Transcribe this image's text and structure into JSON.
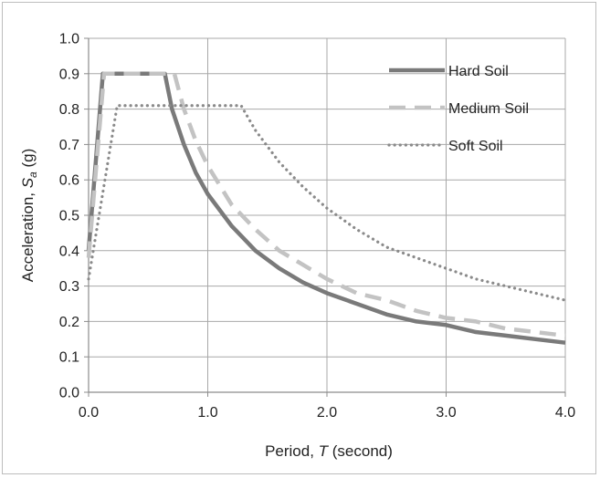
{
  "chart_data": {
    "type": "line",
    "xlabel": {
      "prefix": "Period, ",
      "variable": "T",
      "suffix": " (second)"
    },
    "ylabel": {
      "prefix": "Acceleration,  ",
      "variable": "S",
      "subscript": "a",
      "suffix": " (g)"
    },
    "xlim": [
      0,
      4
    ],
    "ylim": [
      0,
      1.0
    ],
    "xticks": [
      "0.0",
      "1.0",
      "2.0",
      "3.0",
      "4.0"
    ],
    "yticks": [
      "0.0",
      "0.1",
      "0.2",
      "0.3",
      "0.4",
      "0.5",
      "0.6",
      "0.7",
      "0.8",
      "0.9",
      "1.0"
    ],
    "grid": true,
    "legend_position": "top-right",
    "series": [
      {
        "name": "Hard Soil",
        "style": "solid",
        "color": "#7a7a7a",
        "points": [
          [
            0.0,
            0.4
          ],
          [
            0.12,
            0.9
          ],
          [
            0.64,
            0.9
          ],
          [
            0.7,
            0.8
          ],
          [
            0.8,
            0.7
          ],
          [
            0.9,
            0.62
          ],
          [
            1.0,
            0.56
          ],
          [
            1.2,
            0.47
          ],
          [
            1.4,
            0.4
          ],
          [
            1.6,
            0.35
          ],
          [
            1.8,
            0.31
          ],
          [
            2.0,
            0.28
          ],
          [
            2.25,
            0.25
          ],
          [
            2.5,
            0.22
          ],
          [
            2.75,
            0.2
          ],
          [
            3.0,
            0.19
          ],
          [
            3.25,
            0.17
          ],
          [
            3.5,
            0.16
          ],
          [
            3.75,
            0.15
          ],
          [
            4.0,
            0.14
          ]
        ]
      },
      {
        "name": "Medium Soil",
        "style": "dashed",
        "color": "#c3c3c3",
        "points": [
          [
            0.0,
            0.38
          ],
          [
            0.13,
            0.9
          ],
          [
            0.72,
            0.9
          ],
          [
            0.8,
            0.8
          ],
          [
            0.9,
            0.71
          ],
          [
            1.0,
            0.64
          ],
          [
            1.2,
            0.53
          ],
          [
            1.4,
            0.46
          ],
          [
            1.6,
            0.4
          ],
          [
            1.8,
            0.36
          ],
          [
            2.0,
            0.32
          ],
          [
            2.25,
            0.28
          ],
          [
            2.5,
            0.26
          ],
          [
            2.75,
            0.23
          ],
          [
            3.0,
            0.21
          ],
          [
            3.25,
            0.2
          ],
          [
            3.5,
            0.18
          ],
          [
            3.75,
            0.17
          ],
          [
            4.0,
            0.16
          ]
        ]
      },
      {
        "name": "Soft Soil",
        "style": "dotted",
        "color": "#8a8a8a",
        "points": [
          [
            0.0,
            0.32
          ],
          [
            0.24,
            0.81
          ],
          [
            1.28,
            0.81
          ],
          [
            1.4,
            0.74
          ],
          [
            1.6,
            0.65
          ],
          [
            1.8,
            0.58
          ],
          [
            2.0,
            0.52
          ],
          [
            2.25,
            0.46
          ],
          [
            2.5,
            0.41
          ],
          [
            2.75,
            0.38
          ],
          [
            3.0,
            0.35
          ],
          [
            3.25,
            0.32
          ],
          [
            3.5,
            0.3
          ],
          [
            3.75,
            0.28
          ],
          [
            4.0,
            0.26
          ]
        ]
      }
    ]
  }
}
